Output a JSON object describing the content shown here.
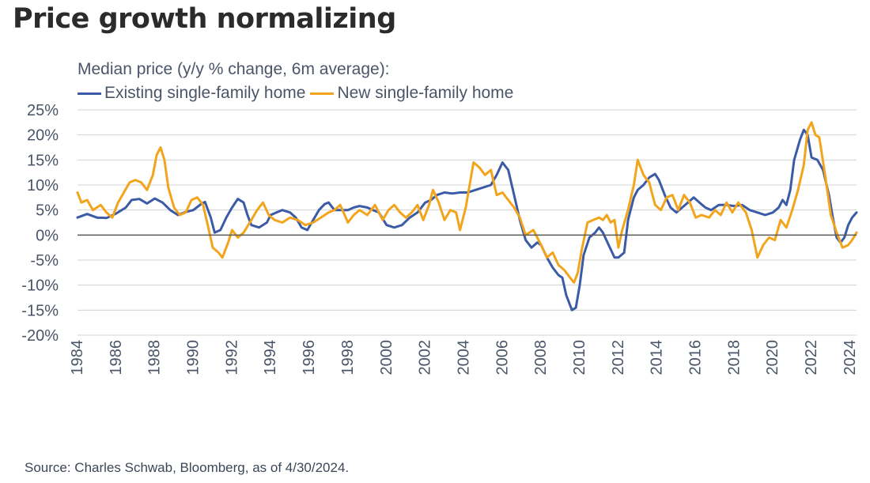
{
  "title": "Price growth normalizing",
  "source": "Source: Charles Schwab, Bloomberg, as of 4/30/2024.",
  "colors": {
    "existing": "#3b5ba6",
    "new": "#f2a51c",
    "grid": "#d3d3d3",
    "zero": "#595959",
    "axis_text": "#4a5568"
  },
  "chart_data": {
    "type": "line",
    "subtitle": "Median price (y/y % change, 6m average):",
    "ylim": [
      -20,
      25
    ],
    "xlim": [
      1984,
      2024.33
    ],
    "yticks": [
      25,
      20,
      15,
      10,
      5,
      0,
      -5,
      -10,
      -15,
      -20
    ],
    "ytick_labels": [
      "25%",
      "20%",
      "15%",
      "10%",
      "5%",
      "0%",
      "-5%",
      "-10%",
      "-15%",
      "-20%"
    ],
    "xticks": [
      1984,
      1986,
      1988,
      1990,
      1992,
      1994,
      1996,
      1998,
      2000,
      2002,
      2004,
      2006,
      2008,
      2010,
      2012,
      2014,
      2016,
      2018,
      2020,
      2022,
      2024
    ],
    "xtick_labels": [
      "1984",
      "1986",
      "1988",
      "1990",
      "1992",
      "1994",
      "1996",
      "1998",
      "2000",
      "2002",
      "2004",
      "2006",
      "2008",
      "2010",
      "2012",
      "2014",
      "2016",
      "2018",
      "2020",
      "2022",
      "2024"
    ],
    "grid": true,
    "legend": "top-left",
    "series": [
      {
        "name": "Existing single-family home",
        "color": "#3b5ba6",
        "points": [
          [
            1984.0,
            3.5
          ],
          [
            1984.5,
            4.2
          ],
          [
            1985.0,
            3.5
          ],
          [
            1985.5,
            3.4
          ],
          [
            1986.0,
            4.3
          ],
          [
            1986.5,
            5.5
          ],
          [
            1986.8,
            7.0
          ],
          [
            1987.2,
            7.2
          ],
          [
            1987.6,
            6.3
          ],
          [
            1988.0,
            7.3
          ],
          [
            1988.4,
            6.5
          ],
          [
            1988.8,
            5.0
          ],
          [
            1989.2,
            4.0
          ],
          [
            1989.6,
            4.6
          ],
          [
            1990.0,
            5.0
          ],
          [
            1990.4,
            6.2
          ],
          [
            1990.6,
            6.6
          ],
          [
            1990.9,
            3.5
          ],
          [
            1991.1,
            0.5
          ],
          [
            1991.4,
            1.0
          ],
          [
            1991.7,
            3.5
          ],
          [
            1992.0,
            5.5
          ],
          [
            1992.3,
            7.2
          ],
          [
            1992.6,
            6.5
          ],
          [
            1992.8,
            4.0
          ],
          [
            1993.0,
            2.0
          ],
          [
            1993.4,
            1.5
          ],
          [
            1993.8,
            2.5
          ],
          [
            1994.0,
            4.0
          ],
          [
            1994.3,
            4.5
          ],
          [
            1994.6,
            5.0
          ],
          [
            1995.0,
            4.5
          ],
          [
            1995.3,
            3.5
          ],
          [
            1995.6,
            1.5
          ],
          [
            1995.9,
            1.0
          ],
          [
            1996.2,
            3.0
          ],
          [
            1996.5,
            5.0
          ],
          [
            1996.8,
            6.2
          ],
          [
            1997.0,
            6.5
          ],
          [
            1997.3,
            5.0
          ],
          [
            1997.6,
            5.0
          ],
          [
            1998.0,
            5.0
          ],
          [
            1998.3,
            5.5
          ],
          [
            1998.6,
            5.8
          ],
          [
            1999.0,
            5.5
          ],
          [
            1999.3,
            5.0
          ],
          [
            1999.6,
            4.5
          ],
          [
            2000.0,
            2.0
          ],
          [
            2000.4,
            1.5
          ],
          [
            2000.8,
            2.0
          ],
          [
            2001.2,
            3.5
          ],
          [
            2001.6,
            4.5
          ],
          [
            2002.0,
            6.5
          ],
          [
            2002.3,
            7.0
          ],
          [
            2002.6,
            8.0
          ],
          [
            2003.0,
            8.5
          ],
          [
            2003.4,
            8.3
          ],
          [
            2003.8,
            8.5
          ],
          [
            2004.2,
            8.5
          ],
          [
            2004.6,
            9.0
          ],
          [
            2005.0,
            9.5
          ],
          [
            2005.4,
            10.0
          ],
          [
            2005.7,
            12.0
          ],
          [
            2006.0,
            14.5
          ],
          [
            2006.3,
            13.0
          ],
          [
            2006.6,
            8.0
          ],
          [
            2006.9,
            3.0
          ],
          [
            2007.2,
            -1.0
          ],
          [
            2007.5,
            -2.5
          ],
          [
            2007.8,
            -1.5
          ],
          [
            2008.0,
            -2.0
          ],
          [
            2008.3,
            -4.5
          ],
          [
            2008.6,
            -6.5
          ],
          [
            2008.9,
            -8.0
          ],
          [
            2009.1,
            -8.5
          ],
          [
            2009.3,
            -12.0
          ],
          [
            2009.6,
            -15.0
          ],
          [
            2009.8,
            -14.5
          ],
          [
            2010.0,
            -10.0
          ],
          [
            2010.2,
            -4.0
          ],
          [
            2010.5,
            -0.5
          ],
          [
            2010.8,
            0.5
          ],
          [
            2011.0,
            1.5
          ],
          [
            2011.2,
            0.5
          ],
          [
            2011.5,
            -2.0
          ],
          [
            2011.8,
            -4.5
          ],
          [
            2012.0,
            -4.5
          ],
          [
            2012.3,
            -3.5
          ],
          [
            2012.5,
            3.0
          ],
          [
            2012.8,
            7.5
          ],
          [
            2013.0,
            9.0
          ],
          [
            2013.3,
            10.0
          ],
          [
            2013.6,
            11.5
          ],
          [
            2013.9,
            12.2
          ],
          [
            2014.1,
            11.0
          ],
          [
            2014.4,
            8.0
          ],
          [
            2014.7,
            5.5
          ],
          [
            2015.0,
            4.5
          ],
          [
            2015.3,
            5.5
          ],
          [
            2015.6,
            6.5
          ],
          [
            2015.9,
            7.5
          ],
          [
            2016.2,
            6.5
          ],
          [
            2016.5,
            5.5
          ],
          [
            2016.8,
            5.0
          ],
          [
            2017.2,
            6.0
          ],
          [
            2017.6,
            6.0
          ],
          [
            2018.0,
            5.8
          ],
          [
            2018.4,
            6.0
          ],
          [
            2018.8,
            5.0
          ],
          [
            2019.2,
            4.5
          ],
          [
            2019.6,
            4.0
          ],
          [
            2020.0,
            4.5
          ],
          [
            2020.3,
            5.5
          ],
          [
            2020.5,
            7.0
          ],
          [
            2020.7,
            6.0
          ],
          [
            2020.9,
            9.0
          ],
          [
            2021.1,
            15.0
          ],
          [
            2021.4,
            19.0
          ],
          [
            2021.6,
            21.0
          ],
          [
            2021.8,
            20.0
          ],
          [
            2022.0,
            15.5
          ],
          [
            2022.3,
            15.0
          ],
          [
            2022.6,
            13.0
          ],
          [
            2022.9,
            8.0
          ],
          [
            2023.1,
            3.5
          ],
          [
            2023.3,
            -0.5
          ],
          [
            2023.5,
            -1.5
          ],
          [
            2023.7,
            -0.5
          ],
          [
            2023.9,
            2.0
          ],
          [
            2024.1,
            3.5
          ],
          [
            2024.33,
            4.5
          ]
        ]
      },
      {
        "name": "New single-family home",
        "color": "#f2a51c",
        "points": [
          [
            1984.0,
            8.5
          ],
          [
            1984.2,
            6.5
          ],
          [
            1984.5,
            7.0
          ],
          [
            1984.8,
            5.0
          ],
          [
            1985.2,
            6.0
          ],
          [
            1985.5,
            4.5
          ],
          [
            1985.8,
            3.5
          ],
          [
            1986.1,
            6.5
          ],
          [
            1986.4,
            8.5
          ],
          [
            1986.7,
            10.5
          ],
          [
            1987.0,
            11.0
          ],
          [
            1987.3,
            10.5
          ],
          [
            1987.6,
            9.0
          ],
          [
            1987.9,
            12.0
          ],
          [
            1988.1,
            16.0
          ],
          [
            1988.3,
            17.5
          ],
          [
            1988.5,
            15.0
          ],
          [
            1988.7,
            9.5
          ],
          [
            1989.0,
            5.5
          ],
          [
            1989.3,
            4.0
          ],
          [
            1989.6,
            4.5
          ],
          [
            1989.9,
            7.0
          ],
          [
            1990.2,
            7.5
          ],
          [
            1990.5,
            6.0
          ],
          [
            1990.8,
            1.0
          ],
          [
            1991.0,
            -2.5
          ],
          [
            1991.3,
            -3.5
          ],
          [
            1991.5,
            -4.5
          ],
          [
            1991.8,
            -1.5
          ],
          [
            1992.0,
            1.0
          ],
          [
            1992.3,
            -0.5
          ],
          [
            1992.6,
            0.5
          ],
          [
            1993.0,
            3.0
          ],
          [
            1993.3,
            5.0
          ],
          [
            1993.6,
            6.5
          ],
          [
            1993.9,
            4.0
          ],
          [
            1994.2,
            3.0
          ],
          [
            1994.6,
            2.5
          ],
          [
            1995.0,
            3.5
          ],
          [
            1995.4,
            3.0
          ],
          [
            1995.8,
            2.0
          ],
          [
            1996.2,
            2.5
          ],
          [
            1996.6,
            3.5
          ],
          [
            1997.0,
            4.5
          ],
          [
            1997.3,
            5.0
          ],
          [
            1997.6,
            6.0
          ],
          [
            1998.0,
            2.5
          ],
          [
            1998.3,
            4.0
          ],
          [
            1998.6,
            5.0
          ],
          [
            1999.0,
            4.0
          ],
          [
            1999.4,
            6.0
          ],
          [
            1999.8,
            3.0
          ],
          [
            2000.1,
            5.0
          ],
          [
            2000.4,
            6.0
          ],
          [
            2000.7,
            4.5
          ],
          [
            2001.0,
            3.5
          ],
          [
            2001.3,
            4.5
          ],
          [
            2001.6,
            6.0
          ],
          [
            2001.9,
            3.0
          ],
          [
            2002.2,
            6.0
          ],
          [
            2002.4,
            9.0
          ],
          [
            2002.7,
            6.5
          ],
          [
            2003.0,
            3.0
          ],
          [
            2003.3,
            5.0
          ],
          [
            2003.6,
            4.5
          ],
          [
            2003.8,
            1.0
          ],
          [
            2004.1,
            5.5
          ],
          [
            2004.3,
            10.0
          ],
          [
            2004.5,
            14.5
          ],
          [
            2004.8,
            13.5
          ],
          [
            2005.1,
            12.0
          ],
          [
            2005.4,
            13.0
          ],
          [
            2005.7,
            8.0
          ],
          [
            2006.0,
            8.5
          ],
          [
            2006.3,
            7.0
          ],
          [
            2006.6,
            5.5
          ],
          [
            2006.9,
            3.5
          ],
          [
            2007.2,
            0.0
          ],
          [
            2007.6,
            1.0
          ],
          [
            2008.0,
            -2.0
          ],
          [
            2008.3,
            -4.5
          ],
          [
            2008.6,
            -3.5
          ],
          [
            2008.9,
            -6.0
          ],
          [
            2009.2,
            -7.0
          ],
          [
            2009.5,
            -8.5
          ],
          [
            2009.7,
            -9.5
          ],
          [
            2009.9,
            -7.5
          ],
          [
            2010.1,
            -3.0
          ],
          [
            2010.4,
            2.5
          ],
          [
            2010.7,
            3.0
          ],
          [
            2011.0,
            3.5
          ],
          [
            2011.2,
            3.0
          ],
          [
            2011.4,
            4.0
          ],
          [
            2011.6,
            2.5
          ],
          [
            2011.8,
            3.0
          ],
          [
            2012.0,
            -2.5
          ],
          [
            2012.2,
            1.0
          ],
          [
            2012.5,
            5.0
          ],
          [
            2012.8,
            10.0
          ],
          [
            2013.0,
            15.0
          ],
          [
            2013.3,
            12.0
          ],
          [
            2013.6,
            10.5
          ],
          [
            2013.9,
            6.0
          ],
          [
            2014.2,
            5.0
          ],
          [
            2014.5,
            7.5
          ],
          [
            2014.8,
            8.0
          ],
          [
            2015.1,
            5.0
          ],
          [
            2015.4,
            8.0
          ],
          [
            2015.7,
            6.5
          ],
          [
            2016.0,
            3.5
          ],
          [
            2016.3,
            4.0
          ],
          [
            2016.7,
            3.5
          ],
          [
            2017.0,
            5.0
          ],
          [
            2017.3,
            4.0
          ],
          [
            2017.6,
            6.5
          ],
          [
            2017.9,
            4.5
          ],
          [
            2018.2,
            6.5
          ],
          [
            2018.6,
            4.5
          ],
          [
            2018.9,
            1.0
          ],
          [
            2019.2,
            -4.5
          ],
          [
            2019.5,
            -2.0
          ],
          [
            2019.8,
            -0.5
          ],
          [
            2020.1,
            -1.0
          ],
          [
            2020.4,
            3.0
          ],
          [
            2020.7,
            1.5
          ],
          [
            2021.0,
            5.0
          ],
          [
            2021.3,
            9.0
          ],
          [
            2021.6,
            14.0
          ],
          [
            2021.8,
            21.0
          ],
          [
            2022.0,
            22.5
          ],
          [
            2022.2,
            20.0
          ],
          [
            2022.4,
            19.5
          ],
          [
            2022.7,
            12.0
          ],
          [
            2023.0,
            4.0
          ],
          [
            2023.3,
            0.5
          ],
          [
            2023.6,
            -2.5
          ],
          [
            2023.9,
            -2.0
          ],
          [
            2024.1,
            -1.0
          ],
          [
            2024.33,
            0.5
          ]
        ]
      }
    ]
  }
}
